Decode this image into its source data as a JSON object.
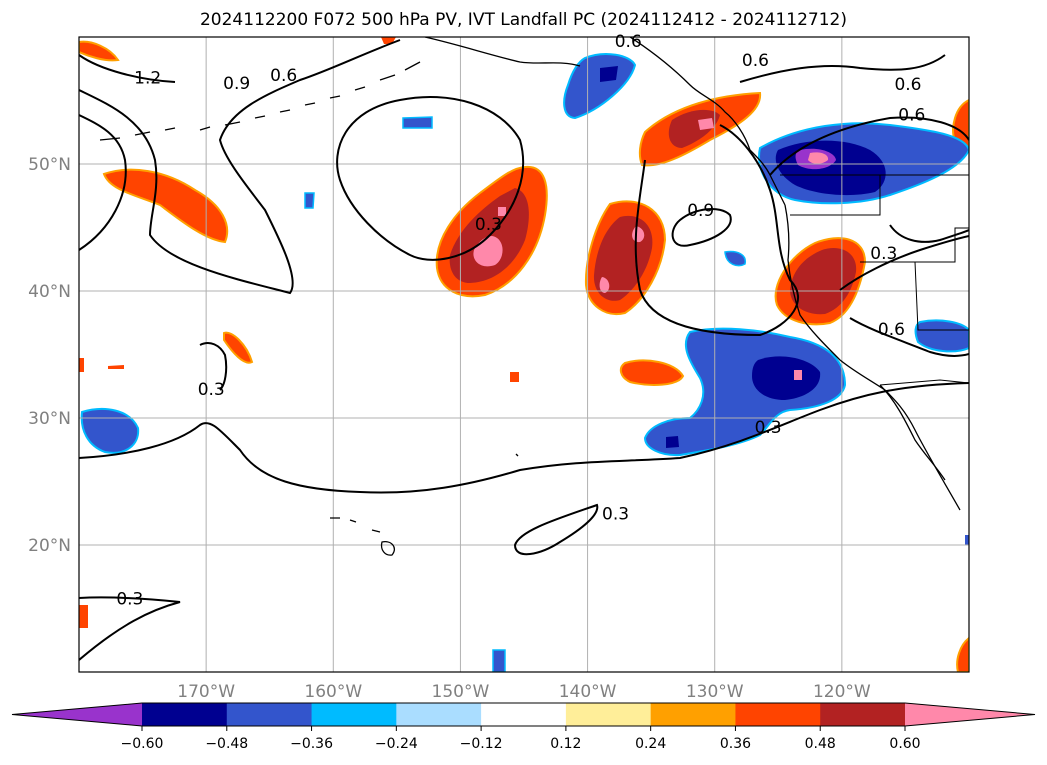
{
  "title": "2024112200 F072 500 hPa PV, IVT Landfall PC (2024112412 - 2024112712)",
  "map": {
    "lon_range": [
      -180,
      -110
    ],
    "lat_range": [
      10,
      60
    ],
    "lat_ticks": [
      {
        "value": 50,
        "label": "50°N"
      },
      {
        "value": 40,
        "label": "40°N"
      },
      {
        "value": 30,
        "label": "30°N"
      },
      {
        "value": 20,
        "label": "20°N"
      }
    ],
    "lon_ticks": [
      {
        "value": -170,
        "label": "170°W"
      },
      {
        "value": -160,
        "label": "160°W"
      },
      {
        "value": -150,
        "label": "150°W"
      },
      {
        "value": -140,
        "label": "140°W"
      },
      {
        "value": -130,
        "label": "130°W"
      },
      {
        "value": -120,
        "label": "120°W"
      }
    ],
    "gridlines": true
  },
  "contour_labels": [
    {
      "text": "1.2",
      "lon": -174.6,
      "lat": 56.4
    },
    {
      "text": "0.9",
      "lon": -167.6,
      "lat": 56.0
    },
    {
      "text": "0.6",
      "lon": -163.9,
      "lat": 56.6
    },
    {
      "text": "0.6",
      "lon": -136.8,
      "lat": 59.3
    },
    {
      "text": "0.6",
      "lon": -126.8,
      "lat": 57.8
    },
    {
      "text": "0.6",
      "lon": -114.5,
      "lat": 53.5
    },
    {
      "text": "0.6",
      "lon": -114.8,
      "lat": 55.9
    },
    {
      "text": "0.3",
      "lon": -147.8,
      "lat": 44.9
    },
    {
      "text": "0.9",
      "lon": -131.1,
      "lat": 46.0
    },
    {
      "text": "0.3",
      "lon": -116.7,
      "lat": 42.6
    },
    {
      "text": "0.6",
      "lon": -116.1,
      "lat": 36.6
    },
    {
      "text": "0.3",
      "lon": -169.6,
      "lat": 31.9
    },
    {
      "text": "0.3",
      "lon": -125.8,
      "lat": 28.9
    },
    {
      "text": "0.3",
      "lon": -137.8,
      "lat": 22.1
    },
    {
      "text": "0.3",
      "lon": -176.0,
      "lat": 15.4
    }
  ],
  "colorbar": {
    "levels": [
      -0.6,
      -0.48,
      -0.36,
      -0.24,
      -0.12,
      0.12,
      0.24,
      0.36,
      0.48,
      0.6
    ],
    "tick_labels": [
      "−0.60",
      "−0.48",
      "−0.36",
      "−0.24",
      "−0.12",
      "0.12",
      "0.24",
      "0.36",
      "0.48",
      "0.60"
    ],
    "colors": [
      "#9933cc",
      "#000090",
      "#3355cc",
      "#00bbff",
      "#aaddff",
      "#ffffff",
      "#ffee99",
      "#ffa000",
      "#ff4400",
      "#b22222",
      "#ff88aa"
    ]
  }
}
